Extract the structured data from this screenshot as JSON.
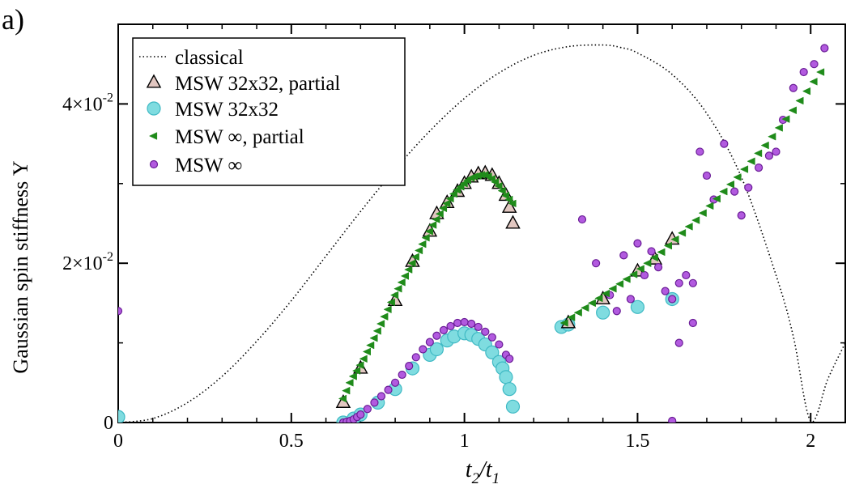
{
  "panel_label": "a)",
  "chart_data": {
    "type": "scatter",
    "xlabel": "t",
    "xlabel_sub": [
      "2",
      "1"
    ],
    "ylabel": "Gaussian spin stiffness Υ",
    "xlim": [
      0,
      2.1
    ],
    "ylim": [
      0,
      0.05
    ],
    "x_ticks": [
      {
        "value": 0,
        "label": "0"
      },
      {
        "value": 0.5,
        "label": "0.5"
      },
      {
        "value": 1,
        "label": "1"
      },
      {
        "value": 1.5,
        "label": "1.5"
      },
      {
        "value": 2,
        "label": "2"
      }
    ],
    "y_ticks": [
      {
        "value": 0,
        "mant": "0",
        "exp": ""
      },
      {
        "value": 0.02,
        "mant": "2×10",
        "exp": "-2"
      },
      {
        "value": 0.04,
        "mant": "4×10",
        "exp": "-2"
      }
    ],
    "legend": {
      "position": "top-left",
      "entries": [
        {
          "key": "classical",
          "label": "classical"
        },
        {
          "key": "msw32_partial",
          "label": "MSW 32x32, partial"
        },
        {
          "key": "msw32",
          "label": "MSW 32x32"
        },
        {
          "key": "mswinf_partial",
          "label": "MSW ∞, partial"
        },
        {
          "key": "mswinf",
          "label": "MSW ∞"
        }
      ]
    },
    "colors": {
      "classical": "#000000",
      "msw32_partial_fill": "#e2c7c1",
      "msw32_fill": "#7fdce0",
      "msw32_edge": "#3fb9c4",
      "mswinf_partial": "#1f8b1a",
      "mswinf_fill": "#b25adf",
      "mswinf_edge": "#6a1d96"
    },
    "series": [
      {
        "key": "classical",
        "name": "classical",
        "style": "dotted-line",
        "x": [
          0,
          0.1,
          0.2,
          0.3,
          0.4,
          0.5,
          0.6,
          0.7,
          0.8,
          0.9,
          1.0,
          1.1,
          1.2,
          1.3,
          1.4,
          1.45,
          1.5,
          1.6,
          1.7,
          1.8,
          1.9,
          1.95,
          2.0,
          2.05,
          2.1
        ],
        "y": [
          0,
          0.0005,
          0.0025,
          0.0058,
          0.0102,
          0.0153,
          0.0209,
          0.0265,
          0.0318,
          0.0366,
          0.0407,
          0.0439,
          0.0461,
          0.0472,
          0.0474,
          0.0471,
          0.0464,
          0.0437,
          0.0388,
          0.0308,
          0.0185,
          0.0108,
          0.0002,
          0.0055,
          0.01
        ]
      },
      {
        "key": "msw32_partial",
        "name": "MSW 32x32, partial",
        "marker": "triangle-up",
        "x": [
          0.65,
          0.7,
          0.8,
          0.85,
          0.9,
          0.92,
          0.95,
          0.98,
          1.0,
          1.02,
          1.04,
          1.06,
          1.08,
          1.1,
          1.12,
          1.13,
          1.14,
          1.3,
          1.4,
          1.5,
          1.55,
          1.6
        ],
        "y": [
          0.0025,
          0.0068,
          0.0153,
          0.0202,
          0.024,
          0.0262,
          0.0276,
          0.029,
          0.03,
          0.0308,
          0.0312,
          0.0313,
          0.031,
          0.03,
          0.0285,
          0.027,
          0.025,
          0.0125,
          0.0155,
          0.019,
          0.0205,
          0.023
        ]
      },
      {
        "key": "msw32",
        "name": "MSW 32x32",
        "marker": "circle",
        "x": [
          0,
          0.65,
          0.68,
          0.7,
          0.75,
          0.8,
          0.85,
          0.9,
          0.92,
          0.95,
          0.97,
          1.0,
          1.02,
          1.04,
          1.06,
          1.08,
          1.1,
          1.11,
          1.12,
          1.13,
          1.14,
          1.28,
          1.3,
          1.4,
          1.5,
          1.6
        ],
        "y": [
          0.0007,
          0,
          0.0005,
          0.001,
          0.0025,
          0.0042,
          0.0068,
          0.0085,
          0.0092,
          0.0103,
          0.0108,
          0.0112,
          0.011,
          0.0105,
          0.0098,
          0.0088,
          0.0076,
          0.0068,
          0.0057,
          0.0042,
          0.002,
          0.012,
          0.0123,
          0.0138,
          0.0145,
          0.0155
        ]
      },
      {
        "key": "mswinf_partial",
        "name": "MSW ∞, partial",
        "marker": "triangle-left",
        "x": [
          0.65,
          0.66,
          0.67,
          0.68,
          0.69,
          0.7,
          0.71,
          0.72,
          0.73,
          0.74,
          0.75,
          0.76,
          0.77,
          0.78,
          0.79,
          0.8,
          0.81,
          0.82,
          0.83,
          0.84,
          0.85,
          0.86,
          0.87,
          0.88,
          0.89,
          0.9,
          0.91,
          0.92,
          0.93,
          0.94,
          0.95,
          0.96,
          0.97,
          0.98,
          0.99,
          1.0,
          1.01,
          1.02,
          1.03,
          1.04,
          1.05,
          1.06,
          1.07,
          1.08,
          1.09,
          1.1,
          1.11,
          1.12,
          1.13,
          1.14,
          1.29,
          1.31,
          1.33,
          1.35,
          1.37,
          1.39,
          1.41,
          1.43,
          1.45,
          1.47,
          1.49,
          1.51,
          1.53,
          1.55,
          1.57,
          1.59,
          1.61,
          1.63,
          1.65,
          1.67,
          1.69,
          1.71,
          1.73,
          1.75,
          1.77,
          1.79,
          1.81,
          1.83,
          1.85,
          1.87,
          1.89,
          1.91,
          1.93,
          1.95,
          1.97,
          1.99,
          2.01,
          2.03
        ],
        "y": [
          0.003,
          0.004,
          0.005,
          0.0058,
          0.0065,
          0.0072,
          0.008,
          0.0089,
          0.0097,
          0.0106,
          0.0115,
          0.0124,
          0.0133,
          0.0142,
          0.0151,
          0.016,
          0.0168,
          0.0176,
          0.0184,
          0.0192,
          0.02,
          0.0208,
          0.0216,
          0.0224,
          0.0232,
          0.024,
          0.0248,
          0.0255,
          0.0262,
          0.0269,
          0.0275,
          0.0281,
          0.0287,
          0.0292,
          0.0296,
          0.03,
          0.0304,
          0.0307,
          0.0309,
          0.031,
          0.0311,
          0.0311,
          0.0309,
          0.0306,
          0.0302,
          0.0297,
          0.0291,
          0.0285,
          0.028,
          0.0275,
          0.0125,
          0.0132,
          0.0138,
          0.0144,
          0.015,
          0.0156,
          0.0162,
          0.0168,
          0.0174,
          0.018,
          0.0186,
          0.0193,
          0.02,
          0.0207,
          0.0214,
          0.0222,
          0.023,
          0.0238,
          0.0246,
          0.0254,
          0.0263,
          0.0272,
          0.0281,
          0.029,
          0.0299,
          0.0308,
          0.0318,
          0.0328,
          0.0338,
          0.0348,
          0.0359,
          0.037,
          0.0381,
          0.0392,
          0.0404,
          0.0416,
          0.0428,
          0.044
        ]
      },
      {
        "key": "mswinf",
        "name": "MSW ∞",
        "marker": "circle-small",
        "x": [
          0,
          0.65,
          0.66,
          0.67,
          0.68,
          0.69,
          0.7,
          0.72,
          0.74,
          0.76,
          0.78,
          0.8,
          0.82,
          0.84,
          0.86,
          0.88,
          0.9,
          0.92,
          0.94,
          0.96,
          0.98,
          1.0,
          1.02,
          1.04,
          1.06,
          1.08,
          1.1,
          1.12,
          1.13,
          1.34,
          1.38,
          1.42,
          1.44,
          1.46,
          1.48,
          1.5,
          1.52,
          1.54,
          1.56,
          1.58,
          1.6,
          1.62,
          1.64,
          1.66,
          1.68,
          1.7,
          1.72,
          1.75,
          1.78,
          1.8,
          1.82,
          1.85,
          1.88,
          1.9,
          1.92,
          1.95,
          1.98,
          2.01,
          2.04,
          1.62,
          1.66,
          1.6
        ],
        "y": [
          0.014,
          0,
          0.0001,
          0.0002,
          0.0004,
          0.0007,
          0.001,
          0.0017,
          0.0025,
          0.0033,
          0.0041,
          0.005,
          0.006,
          0.0071,
          0.0082,
          0.0092,
          0.0101,
          0.0109,
          0.0116,
          0.0121,
          0.0125,
          0.0126,
          0.0124,
          0.012,
          0.0114,
          0.0107,
          0.0098,
          0.0085,
          0.008,
          0.0255,
          0.02,
          0.016,
          0.014,
          0.021,
          0.0155,
          0.0225,
          0.0185,
          0.0215,
          0.0195,
          0.0165,
          0.0155,
          0.0175,
          0.0185,
          0.0175,
          0.034,
          0.031,
          0.028,
          0.035,
          0.029,
          0.026,
          0.0295,
          0.032,
          0.0335,
          0.034,
          0.038,
          0.042,
          0.044,
          0.045,
          0.047,
          0.01,
          0.0125,
          0.0002
        ]
      }
    ]
  }
}
